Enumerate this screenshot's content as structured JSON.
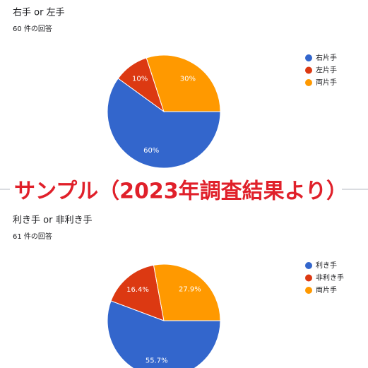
{
  "chart_data": [
    {
      "type": "pie",
      "title": "右手 or 左手",
      "subtitle": "60 件の回答",
      "categories": [
        "右片手",
        "左片手",
        "両片手"
      ],
      "values": [
        60,
        10,
        30
      ],
      "value_labels": [
        "60%",
        "10%",
        "30%"
      ],
      "colors": [
        "#3366cc",
        "#dc3912",
        "#ff9900"
      ],
      "start_angle": 90,
      "legend": "right"
    },
    {
      "type": "pie",
      "title": "利き手 or 非利き手",
      "subtitle": "61 件の回答",
      "categories": [
        "利き手",
        "非利き手",
        "両片手"
      ],
      "values": [
        55.7,
        16.4,
        27.9
      ],
      "value_labels": [
        "55.7%",
        "16.4%",
        "27.9%"
      ],
      "colors": [
        "#3366cc",
        "#dc3912",
        "#ff9900"
      ],
      "start_angle": 90,
      "legend": "right"
    }
  ],
  "banner": "サンプル（2023年調査結果より）"
}
